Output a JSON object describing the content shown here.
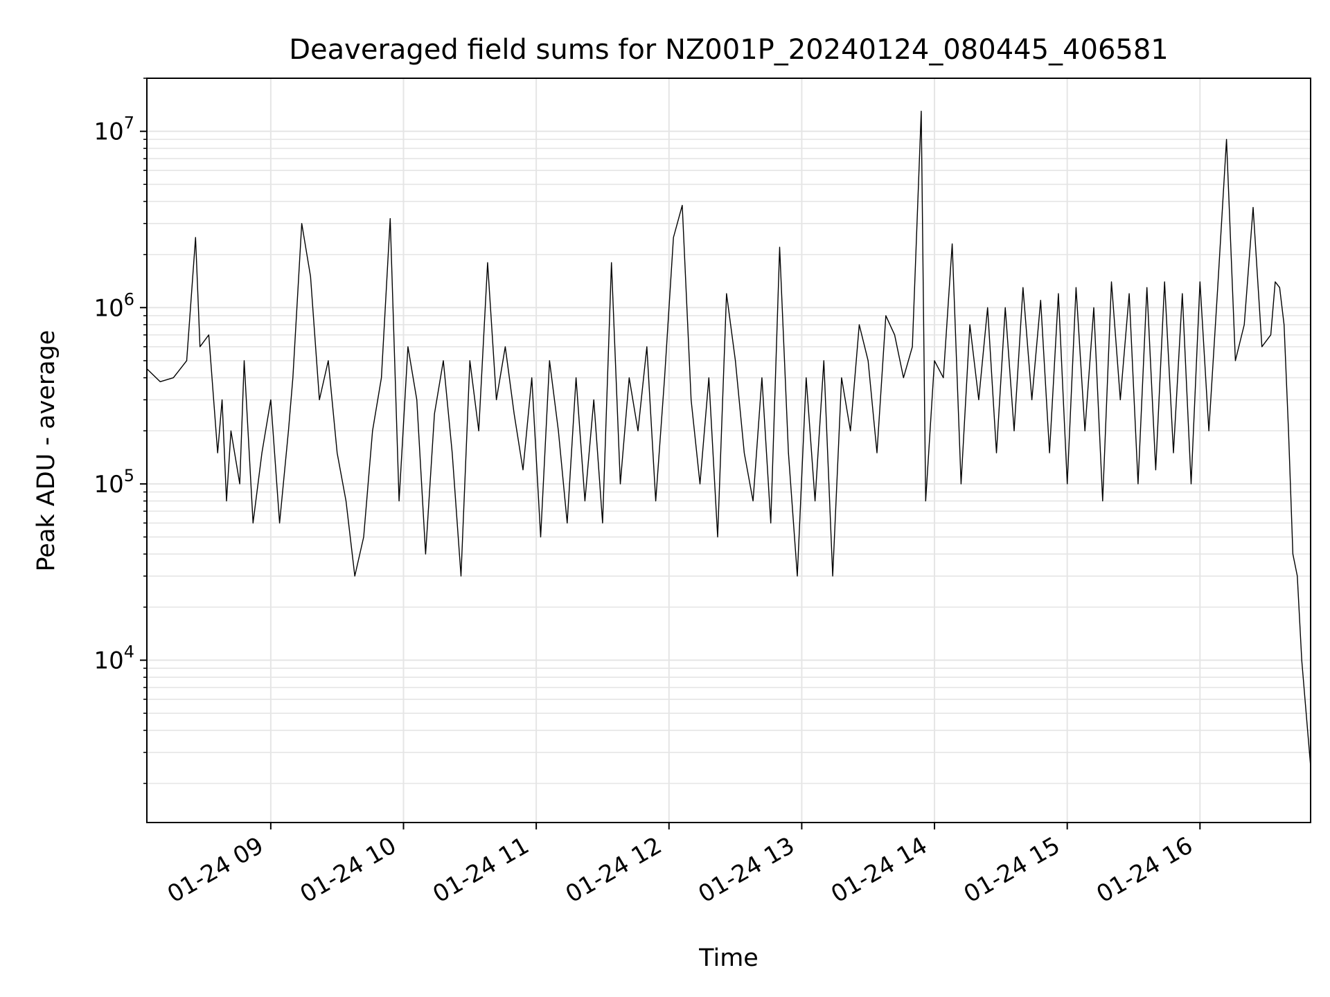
{
  "chart_data": {
    "type": "line",
    "title": "Deaveraged field sums for NZ001P_20240124_080445_406581",
    "xlabel": "Time",
    "ylabel": "Peak ADU - average",
    "yscale": "log",
    "xlim": [
      "01-24 08:04",
      "01-24 16:50"
    ],
    "ylim": [
      1200,
      20000000
    ],
    "grid": true,
    "line_color": "#000000",
    "grid_color": "#e5e5e5",
    "x_ticks": [
      "01-24 09",
      "01-24 10",
      "01-24 11",
      "01-24 12",
      "01-24 13",
      "01-24 14",
      "01-24 15",
      "01-24 16"
    ],
    "y_ticks": [
      {
        "value": 10000,
        "base": "10",
        "exp": "4"
      },
      {
        "value": 100000,
        "base": "10",
        "exp": "5"
      },
      {
        "value": 1000000,
        "base": "10",
        "exp": "6"
      },
      {
        "value": 10000000,
        "base": "10",
        "exp": "7"
      }
    ],
    "series": [
      {
        "x": [
          "01-24 08:04",
          "01-24 08:10",
          "01-24 08:16",
          "01-24 08:22",
          "01-24 08:26",
          "01-24 08:28",
          "01-24 08:32",
          "01-24 08:36",
          "01-24 08:38",
          "01-24 08:40",
          "01-24 08:42",
          "01-24 08:46",
          "01-24 08:48",
          "01-24 08:52",
          "01-24 08:56",
          "01-24 09:00",
          "01-24 09:04",
          "01-24 09:08",
          "01-24 09:10",
          "01-24 09:14",
          "01-24 09:18",
          "01-24 09:22",
          "01-24 09:26",
          "01-24 09:30",
          "01-24 09:34",
          "01-24 09:38",
          "01-24 09:42",
          "01-24 09:46",
          "01-24 09:50",
          "01-24 09:54",
          "01-24 09:58",
          "01-24 10:02",
          "01-24 10:06",
          "01-24 10:10",
          "01-24 10:14",
          "01-24 10:18",
          "01-24 10:22",
          "01-24 10:26",
          "01-24 10:30",
          "01-24 10:34",
          "01-24 10:38",
          "01-24 10:42",
          "01-24 10:46",
          "01-24 10:50",
          "01-24 10:54",
          "01-24 10:58",
          "01-24 11:02",
          "01-24 11:06",
          "01-24 11:10",
          "01-24 11:14",
          "01-24 11:18",
          "01-24 11:22",
          "01-24 11:26",
          "01-24 11:30",
          "01-24 11:34",
          "01-24 11:38",
          "01-24 11:42",
          "01-24 11:46",
          "01-24 11:50",
          "01-24 11:54",
          "01-24 11:58",
          "01-24 12:02",
          "01-24 12:06",
          "01-24 12:10",
          "01-24 12:14",
          "01-24 12:18",
          "01-24 12:22",
          "01-24 12:26",
          "01-24 12:30",
          "01-24 12:34",
          "01-24 12:38",
          "01-24 12:42",
          "01-24 12:46",
          "01-24 12:50",
          "01-24 12:54",
          "01-24 12:58",
          "01-24 13:02",
          "01-24 13:06",
          "01-24 13:10",
          "01-24 13:14",
          "01-24 13:18",
          "01-24 13:22",
          "01-24 13:26",
          "01-24 13:30",
          "01-24 13:34",
          "01-24 13:38",
          "01-24 13:42",
          "01-24 13:46",
          "01-24 13:50",
          "01-24 13:54",
          "01-24 13:56",
          "01-24 14:00",
          "01-24 14:04",
          "01-24 14:08",
          "01-24 14:12",
          "01-24 14:16",
          "01-24 14:20",
          "01-24 14:24",
          "01-24 14:28",
          "01-24 14:32",
          "01-24 14:36",
          "01-24 14:40",
          "01-24 14:44",
          "01-24 14:48",
          "01-24 14:52",
          "01-24 14:56",
          "01-24 15:00",
          "01-24 15:04",
          "01-24 15:08",
          "01-24 15:12",
          "01-24 15:16",
          "01-24 15:20",
          "01-24 15:24",
          "01-24 15:28",
          "01-24 15:32",
          "01-24 15:36",
          "01-24 15:40",
          "01-24 15:44",
          "01-24 15:48",
          "01-24 15:52",
          "01-24 15:56",
          "01-24 16:00",
          "01-24 16:04",
          "01-24 16:08",
          "01-24 16:12",
          "01-24 16:16",
          "01-24 16:20",
          "01-24 16:24",
          "01-24 16:28",
          "01-24 16:32",
          "01-24 16:34",
          "01-24 16:36",
          "01-24 16:38",
          "01-24 16:40",
          "01-24 16:42",
          "01-24 16:44",
          "01-24 16:46",
          "01-24 16:48",
          "01-24 16:50"
        ],
        "y": [
          450000,
          380000,
          400000,
          500000,
          2500000,
          600000,
          700000,
          150000,
          300000,
          80000,
          200000,
          100000,
          500000,
          60000,
          150000,
          300000,
          60000,
          200000,
          400000,
          3000000,
          1500000,
          300000,
          500000,
          150000,
          80000,
          30000,
          50000,
          200000,
          400000,
          3200000,
          80000,
          600000,
          300000,
          40000,
          250000,
          500000,
          150000,
          30000,
          500000,
          200000,
          1800000,
          300000,
          600000,
          250000,
          120000,
          400000,
          50000,
          500000,
          200000,
          60000,
          400000,
          80000,
          300000,
          60000,
          1800000,
          100000,
          400000,
          200000,
          600000,
          80000,
          400000,
          2500000,
          3800000,
          300000,
          100000,
          400000,
          50000,
          1200000,
          500000,
          150000,
          80000,
          400000,
          60000,
          2200000,
          150000,
          30000,
          400000,
          80000,
          500000,
          30000,
          400000,
          200000,
          800000,
          500000,
          150000,
          900000,
          700000,
          400000,
          600000,
          13000000,
          80000,
          500000,
          400000,
          2300000,
          100000,
          800000,
          300000,
          1000000,
          150000,
          1000000,
          200000,
          1300000,
          300000,
          1100000,
          150000,
          1200000,
          100000,
          1300000,
          200000,
          1000000,
          80000,
          1400000,
          300000,
          1200000,
          100000,
          1300000,
          120000,
          1400000,
          150000,
          1200000,
          100000,
          1400000,
          200000,
          1300000,
          9000000,
          500000,
          800000,
          3700000,
          600000,
          700000,
          1400000,
          1300000,
          800000,
          200000,
          40000,
          30000,
          10000,
          5000,
          2500
        ]
      }
    ]
  }
}
